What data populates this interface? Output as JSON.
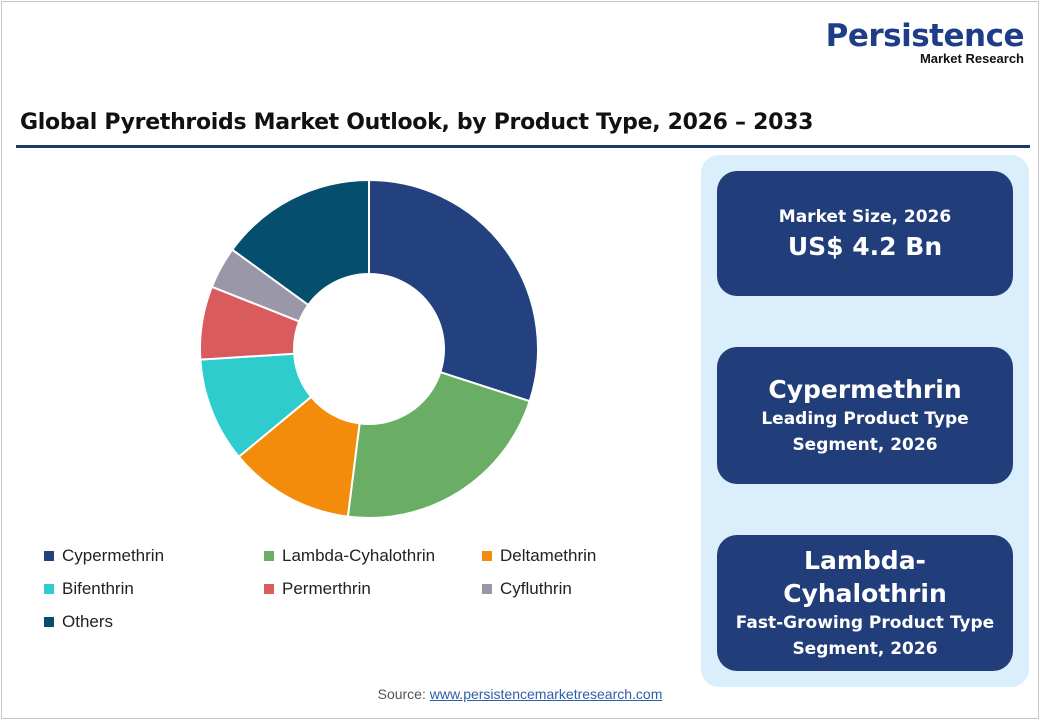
{
  "logo": {
    "line1": "Persistence",
    "line2": "Market Research"
  },
  "title": "Global Pyrethroids Market Outlook, by Product Type, 2026 – 2033",
  "chart_data": {
    "type": "pie",
    "donut": true,
    "categories": [
      "Cypermethrin",
      "Lambda-Cyhalothrin",
      "Deltamethrin",
      "Bifenthrin",
      "Permerthrin",
      "Cyfluthrin",
      "Others"
    ],
    "values": [
      30,
      22,
      12,
      10,
      7,
      4,
      15
    ],
    "unit": "%",
    "colors": [
      "#24417f",
      "#6aae66",
      "#f28c0a",
      "#2ecccc",
      "#d95b5e",
      "#9a97a8",
      "#064e6e"
    ],
    "legend_position": "bottom"
  },
  "cards": [
    {
      "label": "Market Size, 2026",
      "value": "US$ 4.2 Bn"
    },
    {
      "value": "Cypermethrin",
      "label1": "Leading Product Type",
      "label2": "Segment, 2026"
    },
    {
      "value1": "Lambda-",
      "value2": "Cyhalothrin",
      "label1": "Fast-Growing Product Type",
      "label2": "Segment, 2026"
    }
  ],
  "source": {
    "label": "Source:",
    "link": "www.persistencemarketresearch.com"
  }
}
